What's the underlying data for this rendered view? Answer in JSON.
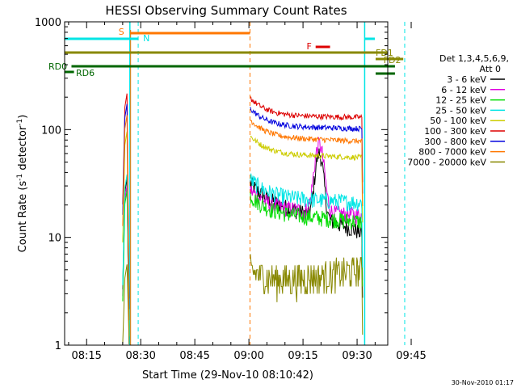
{
  "chart_data": {
    "type": "line",
    "title": "HESSI Observing Summary Count Rates",
    "xlabel": "Start Time (29-Nov-10 08:10:42)",
    "ylabel_main": "Count Rate (s",
    "ylabel_sup1": "-1",
    "ylabel_mid": " detector",
    "ylabel_sup2": "-1",
    "ylabel_end": ")",
    "yscale": "log",
    "ylim": [
      1,
      1000
    ],
    "xlim_minutes": [
      8.9,
      98.5
    ],
    "x_ticks": [
      {
        "label": "08:15",
        "min": 15
      },
      {
        "label": "08:30",
        "min": 30
      },
      {
        "label": "08:45",
        "min": 45
      },
      {
        "label": "09:00",
        "min": 60
      },
      {
        "label": "09:15",
        "min": 75
      },
      {
        "label": "09:30",
        "min": 90
      },
      {
        "label": "09:45",
        "min": 105
      }
    ],
    "y_ticks": [
      {
        "label": "1",
        "value": 1
      },
      {
        "label": "10",
        "value": 10
      },
      {
        "label": "100",
        "value": 100
      },
      {
        "label": "1000",
        "value": 1000
      }
    ],
    "legend_header": [
      "Det 1,3,4,5,6,9,",
      "Att 0"
    ],
    "series": [
      {
        "name": "3 - 6 keV",
        "color": "#000000",
        "level": 22,
        "end": 11
      },
      {
        "name": "6 - 12 keV",
        "color": "#e000e0",
        "level": 19,
        "end": 16,
        "peak": 75
      },
      {
        "name": "12 - 25 keV",
        "color": "#00dd00",
        "level": 17,
        "end": 14
      },
      {
        "name": "25 - 50 keV",
        "color": "#00e5e5",
        "level": 24,
        "end": 21
      },
      {
        "name": "50 - 100 keV",
        "color": "#cccc00",
        "level": 60,
        "end": 55
      },
      {
        "name": "100 - 300 keV",
        "color": "#dd0000",
        "level": 135,
        "end": 130
      },
      {
        "name": "300 - 800 keV",
        "color": "#0000dd",
        "level": 108,
        "end": 102
      },
      {
        "name": "800 - 7000 keV",
        "color": "#ff7700",
        "level": 85,
        "end": 78
      },
      {
        "name": "7000 - 20000 keV",
        "color": "#888800",
        "level": 3.5,
        "end": 5
      }
    ],
    "annotations": [
      {
        "label": "S",
        "color": "#ff7700"
      },
      {
        "label": "N",
        "color": "#00e5e5"
      },
      {
        "label": "F",
        "color": "#dd0000"
      },
      {
        "label": "FD1",
        "color": "#888800"
      },
      {
        "label": "FD2",
        "color": "#888800"
      },
      {
        "label": "RD0",
        "color": "#006600"
      },
      {
        "label": "RD6",
        "color": "#006600"
      }
    ],
    "grid": false,
    "legend_position": "right"
  },
  "timestamp": "30-Nov-2010 01:17"
}
